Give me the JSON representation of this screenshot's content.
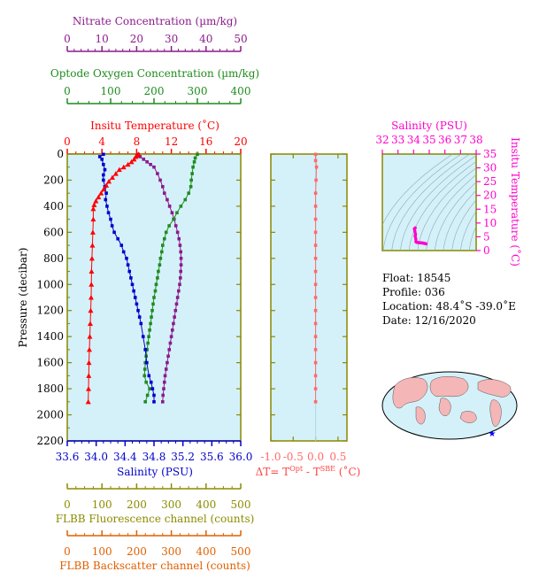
{
  "colors": {
    "nitrate": "#8b1a8b",
    "oxygen": "#1e8c1e",
    "temperature": "#ff0000",
    "salinity": "#0000cc",
    "fluorescence": "#8b8b00",
    "backscatter": "#e06000",
    "dt": "#ff6a6a",
    "ts": "#ff00cc",
    "panel_bg": "#d4f1fa",
    "frame": "#888800"
  },
  "axes": {
    "nitrate": {
      "label": "Nitrate Concentration (µm/kg)",
      "ticks": [
        "0",
        "10",
        "20",
        "30",
        "40",
        "50"
      ],
      "range": [
        0,
        50
      ]
    },
    "oxygen": {
      "label": "Optode Oxygen Concentration (µm/kg)",
      "ticks": [
        "0",
        "100",
        "200",
        "300",
        "400"
      ],
      "range": [
        0,
        400
      ]
    },
    "temperature": {
      "label": "Insitu Temperature (˚C)",
      "ticks": [
        "0",
        "4",
        "8",
        "12",
        "16",
        "20"
      ],
      "range": [
        0,
        20
      ]
    },
    "salinity": {
      "label": "Salinity (PSU)",
      "ticks": [
        "33.6",
        "34.0",
        "34.4",
        "34.8",
        "35.2",
        "35.6",
        "36.0"
      ],
      "range": [
        33.6,
        36.0
      ]
    },
    "pressure": {
      "label": "Pressure (decibar)",
      "ticks": [
        "0",
        "200",
        "400",
        "600",
        "800",
        "1000",
        "1200",
        "1400",
        "1600",
        "1800",
        "2000",
        "2200"
      ],
      "range": [
        0,
        2200
      ]
    },
    "fluorescence": {
      "label": "FLBB Fluorescence channel (counts)",
      "ticks": [
        "0",
        "100",
        "200",
        "300",
        "400",
        "500"
      ],
      "range": [
        0,
        500
      ]
    },
    "backscatter": {
      "label": "FLBB Backscatter channel (counts)",
      "ticks": [
        "0",
        "100",
        "200",
        "300",
        "400",
        "500"
      ],
      "range": [
        0,
        500
      ]
    },
    "dt": {
      "label_prefix": "ΔT= T",
      "sup1": "Opt",
      "mid": " - T",
      "sup2": "SBE",
      "label_suffix": " (˚C)",
      "ticks": [
        "-1.0",
        "-0.5",
        "0.0",
        "0.5"
      ],
      "range": [
        -1.0,
        0.5
      ]
    },
    "ts_salinity": {
      "label": "Salinity (PSU)",
      "ticks": [
        "32",
        "33",
        "34",
        "35",
        "36",
        "37",
        "38"
      ],
      "range": [
        32,
        38
      ]
    },
    "ts_temperature": {
      "label": "Insitu Temperature (˚C)",
      "ticks": [
        "0",
        "5",
        "10",
        "15",
        "20",
        "25",
        "30",
        "35"
      ],
      "range": [
        0,
        35
      ]
    }
  },
  "info": {
    "float": "Float:  18545",
    "profile": "Profile:  036",
    "location": "Location:  48.4˚S  -39.0˚E",
    "date": "Date:  12/16/2020"
  },
  "chart_data": [
    {
      "type": "line",
      "name": "Temperature",
      "points": [
        [
          2,
          8.2
        ],
        [
          10,
          8.0
        ],
        [
          20,
          7.9
        ],
        [
          40,
          7.7
        ],
        [
          60,
          7.4
        ],
        [
          80,
          7.0
        ],
        [
          100,
          6.5
        ],
        [
          120,
          6.0
        ],
        [
          150,
          5.6
        ],
        [
          180,
          5.2
        ],
        [
          210,
          4.8
        ],
        [
          240,
          4.5
        ],
        [
          270,
          4.2
        ],
        [
          300,
          3.9
        ],
        [
          330,
          3.6
        ],
        [
          360,
          3.3
        ],
        [
          390,
          3.1
        ],
        [
          420,
          3.0
        ],
        [
          500,
          3.0
        ],
        [
          600,
          2.95
        ],
        [
          700,
          2.9
        ],
        [
          800,
          2.85
        ],
        [
          900,
          2.8
        ],
        [
          1000,
          2.78
        ],
        [
          1100,
          2.75
        ],
        [
          1200,
          2.7
        ],
        [
          1300,
          2.65
        ],
        [
          1400,
          2.6
        ],
        [
          1500,
          2.55
        ],
        [
          1600,
          2.5
        ],
        [
          1700,
          2.48
        ],
        [
          1800,
          2.45
        ],
        [
          1900,
          2.42
        ]
      ]
    },
    {
      "type": "line",
      "name": "Salinity",
      "points": [
        [
          2,
          34.1
        ],
        [
          20,
          34.05
        ],
        [
          40,
          34.08
        ],
        [
          80,
          34.1
        ],
        [
          120,
          34.12
        ],
        [
          160,
          34.1
        ],
        [
          200,
          34.1
        ],
        [
          250,
          34.12
        ],
        [
          300,
          34.14
        ],
        [
          350,
          34.13
        ],
        [
          400,
          34.15
        ],
        [
          450,
          34.17
        ],
        [
          500,
          34.2
        ],
        [
          550,
          34.22
        ],
        [
          600,
          34.25
        ],
        [
          650,
          34.3
        ],
        [
          700,
          34.35
        ],
        [
          750,
          34.38
        ],
        [
          800,
          34.42
        ],
        [
          850,
          34.44
        ],
        [
          900,
          34.46
        ],
        [
          950,
          34.48
        ],
        [
          1000,
          34.5
        ],
        [
          1050,
          34.52
        ],
        [
          1100,
          34.54
        ],
        [
          1150,
          34.56
        ],
        [
          1200,
          34.58
        ],
        [
          1250,
          34.6
        ],
        [
          1300,
          34.62
        ],
        [
          1400,
          34.65
        ],
        [
          1500,
          34.68
        ],
        [
          1600,
          34.7
        ],
        [
          1700,
          34.73
        ],
        [
          1750,
          34.76
        ],
        [
          1800,
          34.78
        ],
        [
          1850,
          34.8
        ],
        [
          1900,
          34.8
        ]
      ]
    },
    {
      "type": "line",
      "name": "Oxygen",
      "points": [
        [
          2,
          300
        ],
        [
          30,
          295
        ],
        [
          60,
          293
        ],
        [
          100,
          290
        ],
        [
          150,
          288
        ],
        [
          200,
          286
        ],
        [
          250,
          285
        ],
        [
          300,
          280
        ],
        [
          350,
          272
        ],
        [
          400,
          262
        ],
        [
          450,
          253
        ],
        [
          500,
          245
        ],
        [
          550,
          235
        ],
        [
          600,
          228
        ],
        [
          650,
          224
        ],
        [
          700,
          220
        ],
        [
          750,
          218
        ],
        [
          800,
          215
        ],
        [
          850,
          213
        ],
        [
          900,
          210
        ],
        [
          950,
          208
        ],
        [
          1000,
          205
        ],
        [
          1050,
          203
        ],
        [
          1100,
          200
        ],
        [
          1150,
          198
        ],
        [
          1200,
          196
        ],
        [
          1250,
          194
        ],
        [
          1300,
          192
        ],
        [
          1350,
          190
        ],
        [
          1400,
          188
        ],
        [
          1450,
          186
        ],
        [
          1500,
          184
        ],
        [
          1550,
          182
        ],
        [
          1600,
          180
        ],
        [
          1650,
          179
        ],
        [
          1700,
          178
        ],
        [
          1750,
          182
        ],
        [
          1800,
          190
        ],
        [
          1850,
          185
        ],
        [
          1900,
          180
        ]
      ]
    },
    {
      "type": "line",
      "name": "Nitrate",
      "points": [
        [
          2,
          20.5
        ],
        [
          20,
          21.0
        ],
        [
          40,
          22.0
        ],
        [
          60,
          23.0
        ],
        [
          80,
          24.0
        ],
        [
          100,
          25.0
        ],
        [
          150,
          26.0
        ],
        [
          200,
          26.8
        ],
        [
          250,
          27.5
        ],
        [
          300,
          28.0
        ],
        [
          350,
          28.8
        ],
        [
          400,
          29.5
        ],
        [
          450,
          30.2
        ],
        [
          500,
          30.8
        ],
        [
          550,
          31.3
        ],
        [
          600,
          31.8
        ],
        [
          650,
          32.2
        ],
        [
          700,
          32.5
        ],
        [
          750,
          32.7
        ],
        [
          800,
          32.8
        ],
        [
          850,
          32.8
        ],
        [
          900,
          32.7
        ],
        [
          950,
          32.6
        ],
        [
          1000,
          32.4
        ],
        [
          1050,
          32.1
        ],
        [
          1100,
          31.8
        ],
        [
          1150,
          31.5
        ],
        [
          1200,
          31.2
        ],
        [
          1250,
          30.9
        ],
        [
          1300,
          30.6
        ],
        [
          1350,
          30.3
        ],
        [
          1400,
          30.0
        ],
        [
          1450,
          29.7
        ],
        [
          1500,
          29.4
        ],
        [
          1550,
          29.1
        ],
        [
          1600,
          28.8
        ],
        [
          1650,
          28.5
        ],
        [
          1700,
          28.2
        ],
        [
          1750,
          28.0
        ],
        [
          1800,
          27.8
        ],
        [
          1850,
          27.6
        ],
        [
          1900,
          27.5
        ]
      ]
    },
    {
      "type": "line",
      "name": "Delta T",
      "points": [
        [
          2,
          0.0
        ],
        [
          50,
          0.0
        ],
        [
          100,
          0.02
        ],
        [
          200,
          0.01
        ],
        [
          300,
          0.0
        ],
        [
          400,
          0.0
        ],
        [
          500,
          0.0
        ],
        [
          600,
          0.0
        ],
        [
          700,
          0.0
        ],
        [
          800,
          0.0
        ],
        [
          900,
          0.0
        ],
        [
          1000,
          0.0
        ],
        [
          1100,
          0.0
        ],
        [
          1200,
          0.0
        ],
        [
          1300,
          0.0
        ],
        [
          1400,
          0.0
        ],
        [
          1500,
          0.0
        ],
        [
          1600,
          0.0
        ],
        [
          1700,
          0.0
        ],
        [
          1800,
          0.0
        ],
        [
          1900,
          0.0
        ]
      ]
    },
    {
      "type": "scatter",
      "name": "T-S",
      "points": [
        [
          34.1,
          8.2
        ],
        [
          34.05,
          7.8
        ],
        [
          34.08,
          7.0
        ],
        [
          34.12,
          6.0
        ],
        [
          34.1,
          5.2
        ],
        [
          34.14,
          4.2
        ],
        [
          34.15,
          3.2
        ],
        [
          34.2,
          3.0
        ],
        [
          34.3,
          2.9
        ],
        [
          34.4,
          2.85
        ],
        [
          34.5,
          2.78
        ],
        [
          34.6,
          2.7
        ],
        [
          34.7,
          2.6
        ],
        [
          34.8,
          2.45
        ]
      ]
    }
  ]
}
